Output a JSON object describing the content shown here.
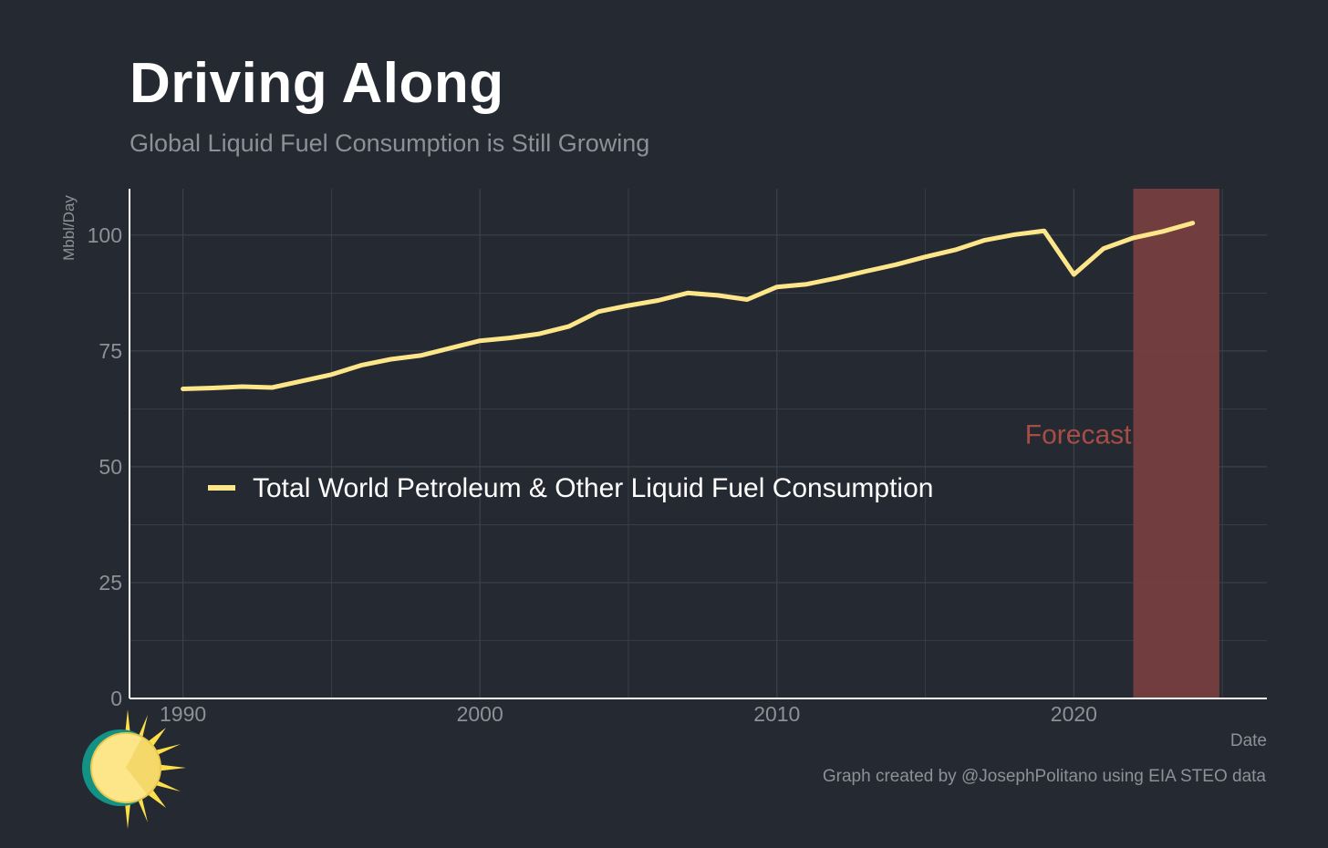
{
  "title": "Driving Along",
  "subtitle": "Global Liquid Fuel Consumption is Still Growing",
  "footer": "Graph created by @JosephPolitano using EIA STEO data",
  "colors": {
    "background": "#252a32",
    "line": "#fde68a",
    "forecast_band": "#7a3f3f",
    "forecast_text": "#a74d45",
    "grid": "#3c414a",
    "axis": "#ffffff",
    "tick_text": "#8d9096"
  },
  "logo_icon": "sun-icon",
  "chart_data": {
    "type": "line",
    "title": "Driving Along",
    "subtitle": "Global Liquid Fuel Consumption is Still Growing",
    "xlabel": "Date",
    "ylabel": "Mbbl/Day",
    "xlim": [
      1988.2,
      2026.5
    ],
    "ylim": [
      0,
      110
    ],
    "x_ticks": [
      1990,
      2000,
      2010,
      2020
    ],
    "y_ticks": [
      0,
      25,
      50,
      75,
      100
    ],
    "grid": true,
    "legend_position": "center-left",
    "series": [
      {
        "name": "Total World Petroleum & Other Liquid Fuel Consumption",
        "x": [
          1990,
          1991,
          1992,
          1993,
          1994,
          1995,
          1996,
          1997,
          1998,
          1999,
          2000,
          2001,
          2002,
          2003,
          2004,
          2005,
          2006,
          2007,
          2008,
          2009,
          2010,
          2011,
          2012,
          2013,
          2014,
          2015,
          2016,
          2017,
          2018,
          2019,
          2020,
          2021,
          2022,
          2023,
          2024
        ],
        "values": [
          66.8,
          67.0,
          67.3,
          67.1,
          68.5,
          69.9,
          71.9,
          73.2,
          74.0,
          75.6,
          77.2,
          77.8,
          78.7,
          80.3,
          83.5,
          84.8,
          85.9,
          87.5,
          87.0,
          86.1,
          88.8,
          89.4,
          90.7,
          92.2,
          93.6,
          95.3,
          96.8,
          98.9,
          100.1,
          100.9,
          91.5,
          97.1,
          99.4,
          100.8,
          102.6
        ]
      }
    ],
    "annotations": [
      {
        "text": "Forecast",
        "x_range": [
          2022.0,
          2024.9
        ]
      }
    ]
  }
}
